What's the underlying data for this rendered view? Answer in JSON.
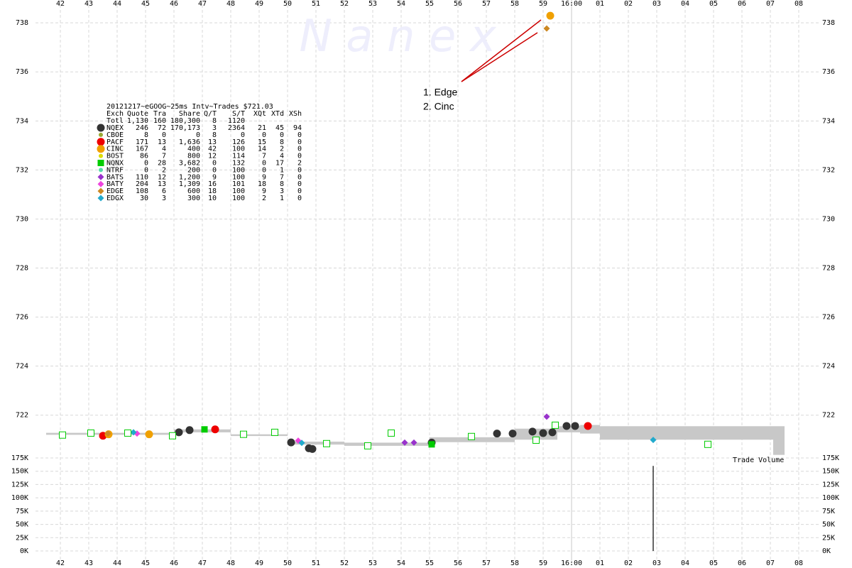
{
  "chart_data": {
    "type": "scatter",
    "title": "20121217~eGOOG~25ms Intv~Trades $721.03",
    "watermark": "N a n e x",
    "annotations": [
      "1. Edge",
      "2. Cinc"
    ],
    "volume_label": "Trade Volume",
    "xlim": [
      41.5,
      68.25
    ],
    "xticks": [
      42,
      43,
      44,
      45,
      46,
      47,
      48,
      49,
      50,
      51,
      52,
      53,
      54,
      55,
      56,
      57,
      58,
      59,
      {
        "value": 60,
        "label": "16:00"
      },
      {
        "value": 61,
        "label": "01"
      },
      {
        "value": 62,
        "label": "02"
      },
      {
        "value": 63,
        "label": "03"
      },
      {
        "value": 64,
        "label": "04"
      },
      {
        "value": 65,
        "label": "05"
      },
      {
        "value": 66,
        "label": "06"
      },
      {
        "value": 67,
        "label": "07"
      },
      {
        "value": 68,
        "label": "08"
      }
    ],
    "ylim": [
      720.4,
      738.7
    ],
    "yticks": [
      722,
      724,
      726,
      728,
      730,
      732,
      734,
      736,
      738
    ],
    "y2lim": [
      0,
      175000
    ],
    "y2ticks": [
      {
        "value": 0,
        "label": "0K"
      },
      {
        "value": 25000,
        "label": "25K"
      },
      {
        "value": 50000,
        "label": "50K"
      },
      {
        "value": 75000,
        "label": "75K"
      },
      {
        "value": 100000,
        "label": "100K"
      },
      {
        "value": 125000,
        "label": "125K"
      },
      {
        "value": 150000,
        "label": "150K"
      },
      {
        "value": 175000,
        "label": "175K"
      }
    ],
    "grid": true,
    "table_header": [
      "Exch",
      "Quote",
      "Tra",
      "Share",
      "Q/T",
      "S/T",
      "XQt",
      "XTd",
      "XSh"
    ],
    "totals": [
      "Totl",
      "1,130",
      "160",
      "180,300",
      "8",
      "1120"
    ],
    "series": [
      {
        "name": "NQEX",
        "color": "#333333",
        "marker": "circle",
        "stats": [
          "246",
          "72",
          "170,173",
          "3",
          "2364",
          "21",
          "45",
          "94"
        ],
        "x": [
          46.175,
          46.55,
          50.125,
          50.75,
          50.875,
          55.075,
          57.375,
          57.925,
          58.625,
          59.0,
          59.325,
          59.825,
          60.125
        ],
        "values": [
          721.3,
          721.39,
          720.89,
          720.65,
          720.62,
          720.88,
          721.25,
          721.25,
          721.33,
          721.27,
          721.3,
          721.56,
          721.56
        ]
      },
      {
        "name": "CBOE",
        "color": "#99aa33",
        "marker": "dot",
        "stats": [
          "8",
          "0",
          "0",
          "8",
          "0",
          "0",
          "0",
          "0"
        ],
        "x": [],
        "values": []
      },
      {
        "name": "PACF",
        "color": "#ee0000",
        "marker": "circle",
        "stats": [
          "171",
          "13",
          "1,636",
          "13",
          "126",
          "15",
          "8",
          "0"
        ],
        "x": [
          43.5,
          47.45,
          60.575
        ],
        "values": [
          721.16,
          721.42,
          721.56
        ]
      },
      {
        "name": "CINC",
        "color": "#f0a000",
        "marker": "circle",
        "stats": [
          "167",
          "4",
          "400",
          "42",
          "100",
          "14",
          "2",
          "0"
        ],
        "x": [
          43.7,
          45.125,
          59.25
        ],
        "values": [
          721.22,
          721.22,
          738.29
        ]
      },
      {
        "name": "BOST",
        "color": "#dddd00",
        "marker": "dot",
        "stats": [
          "86",
          "7",
          "800",
          "12",
          "114",
          "7",
          "4",
          "0"
        ],
        "x": [],
        "values": []
      },
      {
        "name": "NQNX",
        "color": "#00cc00",
        "marker": "square",
        "stats": [
          "0",
          "28",
          "3,682",
          "0",
          "132",
          "0",
          "17",
          "2"
        ],
        "x": [
          47.075,
          55.075
        ],
        "values": [
          721.42,
          720.81
        ]
      },
      {
        "name": "NTRF",
        "color": "#55ddaa",
        "marker": "dot",
        "stats": [
          "0",
          "2",
          "200",
          "0",
          "100",
          "0",
          "1",
          "0"
        ],
        "x": [],
        "values": []
      },
      {
        "name": "BATS",
        "color": "#9933cc",
        "marker": "diamond",
        "stats": [
          "110",
          "12",
          "1,200",
          "9",
          "100",
          "9",
          "7",
          "0"
        ],
        "x": [
          59.125,
          54.125,
          54.45
        ],
        "values": [
          721.94,
          720.88,
          720.88
        ]
      },
      {
        "name": "BATY",
        "color": "#ee44dd",
        "marker": "diamond",
        "stats": [
          "204",
          "13",
          "1,309",
          "16",
          "101",
          "18",
          "8",
          "0"
        ],
        "x": [
          44.7,
          50.375
        ],
        "values": [
          721.25,
          720.96
        ]
      },
      {
        "name": "EDGE",
        "color": "#cc8822",
        "marker": "diamond",
        "stats": [
          "108",
          "6",
          "600",
          "18",
          "100",
          "9",
          "3",
          "0"
        ],
        "x": [
          43.675,
          59.125
        ],
        "values": [
          721.25,
          737.77
        ]
      },
      {
        "name": "EDGX",
        "color": "#22aacc",
        "marker": "diamond",
        "stats": [
          "30",
          "3",
          "300",
          "10",
          "100",
          "2",
          "1",
          "0"
        ],
        "x": [
          44.575,
          50.5,
          62.875
        ],
        "values": [
          721.3,
          720.87,
          720.99
        ]
      },
      {
        "color": "#00cc00",
        "marker": "open-square",
        "x": [
          42.075,
          43.075,
          44.375,
          45.95,
          48.45,
          49.55,
          51.375,
          52.825,
          53.65,
          56.475,
          58.75,
          59.425,
          64.8
        ],
        "values": [
          721.19,
          721.27,
          721.27,
          721.16,
          721.22,
          721.3,
          720.84,
          720.75,
          721.27,
          721.13,
          720.98,
          721.59,
          720.81
        ]
      }
    ],
    "band": {
      "color": "#c8c8c8",
      "bins": [
        41.5,
        46,
        48,
        50,
        52,
        55,
        58,
        59.5,
        60.3,
        61,
        67.1,
        67.5
      ],
      "low": [
        721.2,
        721.3,
        721.15,
        720.8,
        720.75,
        720.9,
        721.0,
        721.3,
        721.25,
        721.0,
        720.38
      ],
      "high": [
        721.28,
        721.42,
        721.22,
        720.92,
        720.88,
        721.1,
        721.45,
        721.55,
        721.6,
        721.55,
        721.55
      ]
    },
    "volume": {
      "color": "#333333",
      "x": [
        62.875
      ],
      "values": [
        160000
      ]
    }
  }
}
